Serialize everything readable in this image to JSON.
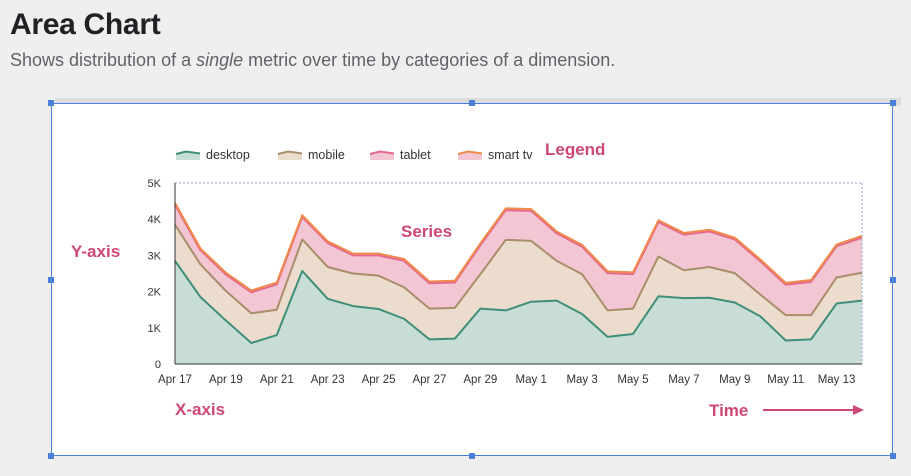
{
  "header": {
    "title": "Area Chart",
    "subtitle_before": "Shows distribution of a ",
    "subtitle_em": "single",
    "subtitle_after": " metric over time by categories of a dimension."
  },
  "annotations": {
    "legend": "Legend",
    "series": "Series",
    "y_axis": "Y-axis",
    "x_axis": "X-axis",
    "time": "Time"
  },
  "colors": {
    "desktop_fill": "#c8ddd5",
    "desktop_line": "#3f8f78",
    "mobile_fill": "#ecdccd",
    "mobile_line": "#a88e6a",
    "tablet_fill": "#f3c6d3",
    "tablet_line": "#e5698f",
    "smarttv_line": "#ef8a4c",
    "annotation": "#cf4777",
    "selection": "#4a80d8"
  },
  "chart_data": {
    "type": "area",
    "stacked": true,
    "legend_position": "top",
    "grid": false,
    "ylim": [
      0,
      5000
    ],
    "y_ticks": [
      "0",
      "1K",
      "2K",
      "3K",
      "4K",
      "5K"
    ],
    "x_tick_labels": [
      "Apr 17",
      "Apr 19",
      "Apr 21",
      "Apr 23",
      "Apr 25",
      "Apr 27",
      "Apr 29",
      "May 1",
      "May 3",
      "May 5",
      "May 7",
      "May 9",
      "May 11",
      "May 13"
    ],
    "x": [
      "Apr 17",
      "Apr 18",
      "Apr 19",
      "Apr 20",
      "Apr 21",
      "Apr 22",
      "Apr 23",
      "Apr 24",
      "Apr 25",
      "Apr 26",
      "Apr 27",
      "Apr 28",
      "Apr 29",
      "Apr 30",
      "May 1",
      "May 2",
      "May 3",
      "May 4",
      "May 5",
      "May 6",
      "May 7",
      "May 8",
      "May 9",
      "May 10",
      "May 11",
      "May 12",
      "May 13",
      "May 14"
    ],
    "series": [
      {
        "name": "desktop",
        "values": [
          2850,
          1850,
          1200,
          580,
          800,
          2570,
          1800,
          1600,
          1520,
          1250,
          680,
          700,
          1530,
          1480,
          1720,
          1750,
          1380,
          750,
          830,
          1870,
          1820,
          1830,
          1700,
          1320,
          650,
          680,
          1670,
          1750
        ]
      },
      {
        "name": "mobile",
        "values": [
          1000,
          900,
          820,
          820,
          700,
          870,
          880,
          900,
          920,
          870,
          850,
          850,
          950,
          1950,
          1680,
          1100,
          1100,
          730,
          700,
          1100,
          770,
          850,
          810,
          600,
          700,
          670,
          720,
          770
        ]
      },
      {
        "name": "tablet",
        "values": [
          550,
          390,
          450,
          580,
          700,
          620,
          660,
          500,
          560,
          730,
          700,
          700,
          800,
          820,
          830,
          760,
          760,
          1030,
          950,
          950,
          980,
          980,
          930,
          920,
          840,
          920,
          860,
          970
        ]
      },
      {
        "name": "smart tv",
        "values": [
          50,
          50,
          50,
          50,
          50,
          50,
          50,
          50,
          50,
          50,
          50,
          50,
          50,
          50,
          50,
          50,
          50,
          50,
          50,
          50,
          50,
          50,
          50,
          50,
          50,
          50,
          50,
          50
        ]
      }
    ]
  }
}
